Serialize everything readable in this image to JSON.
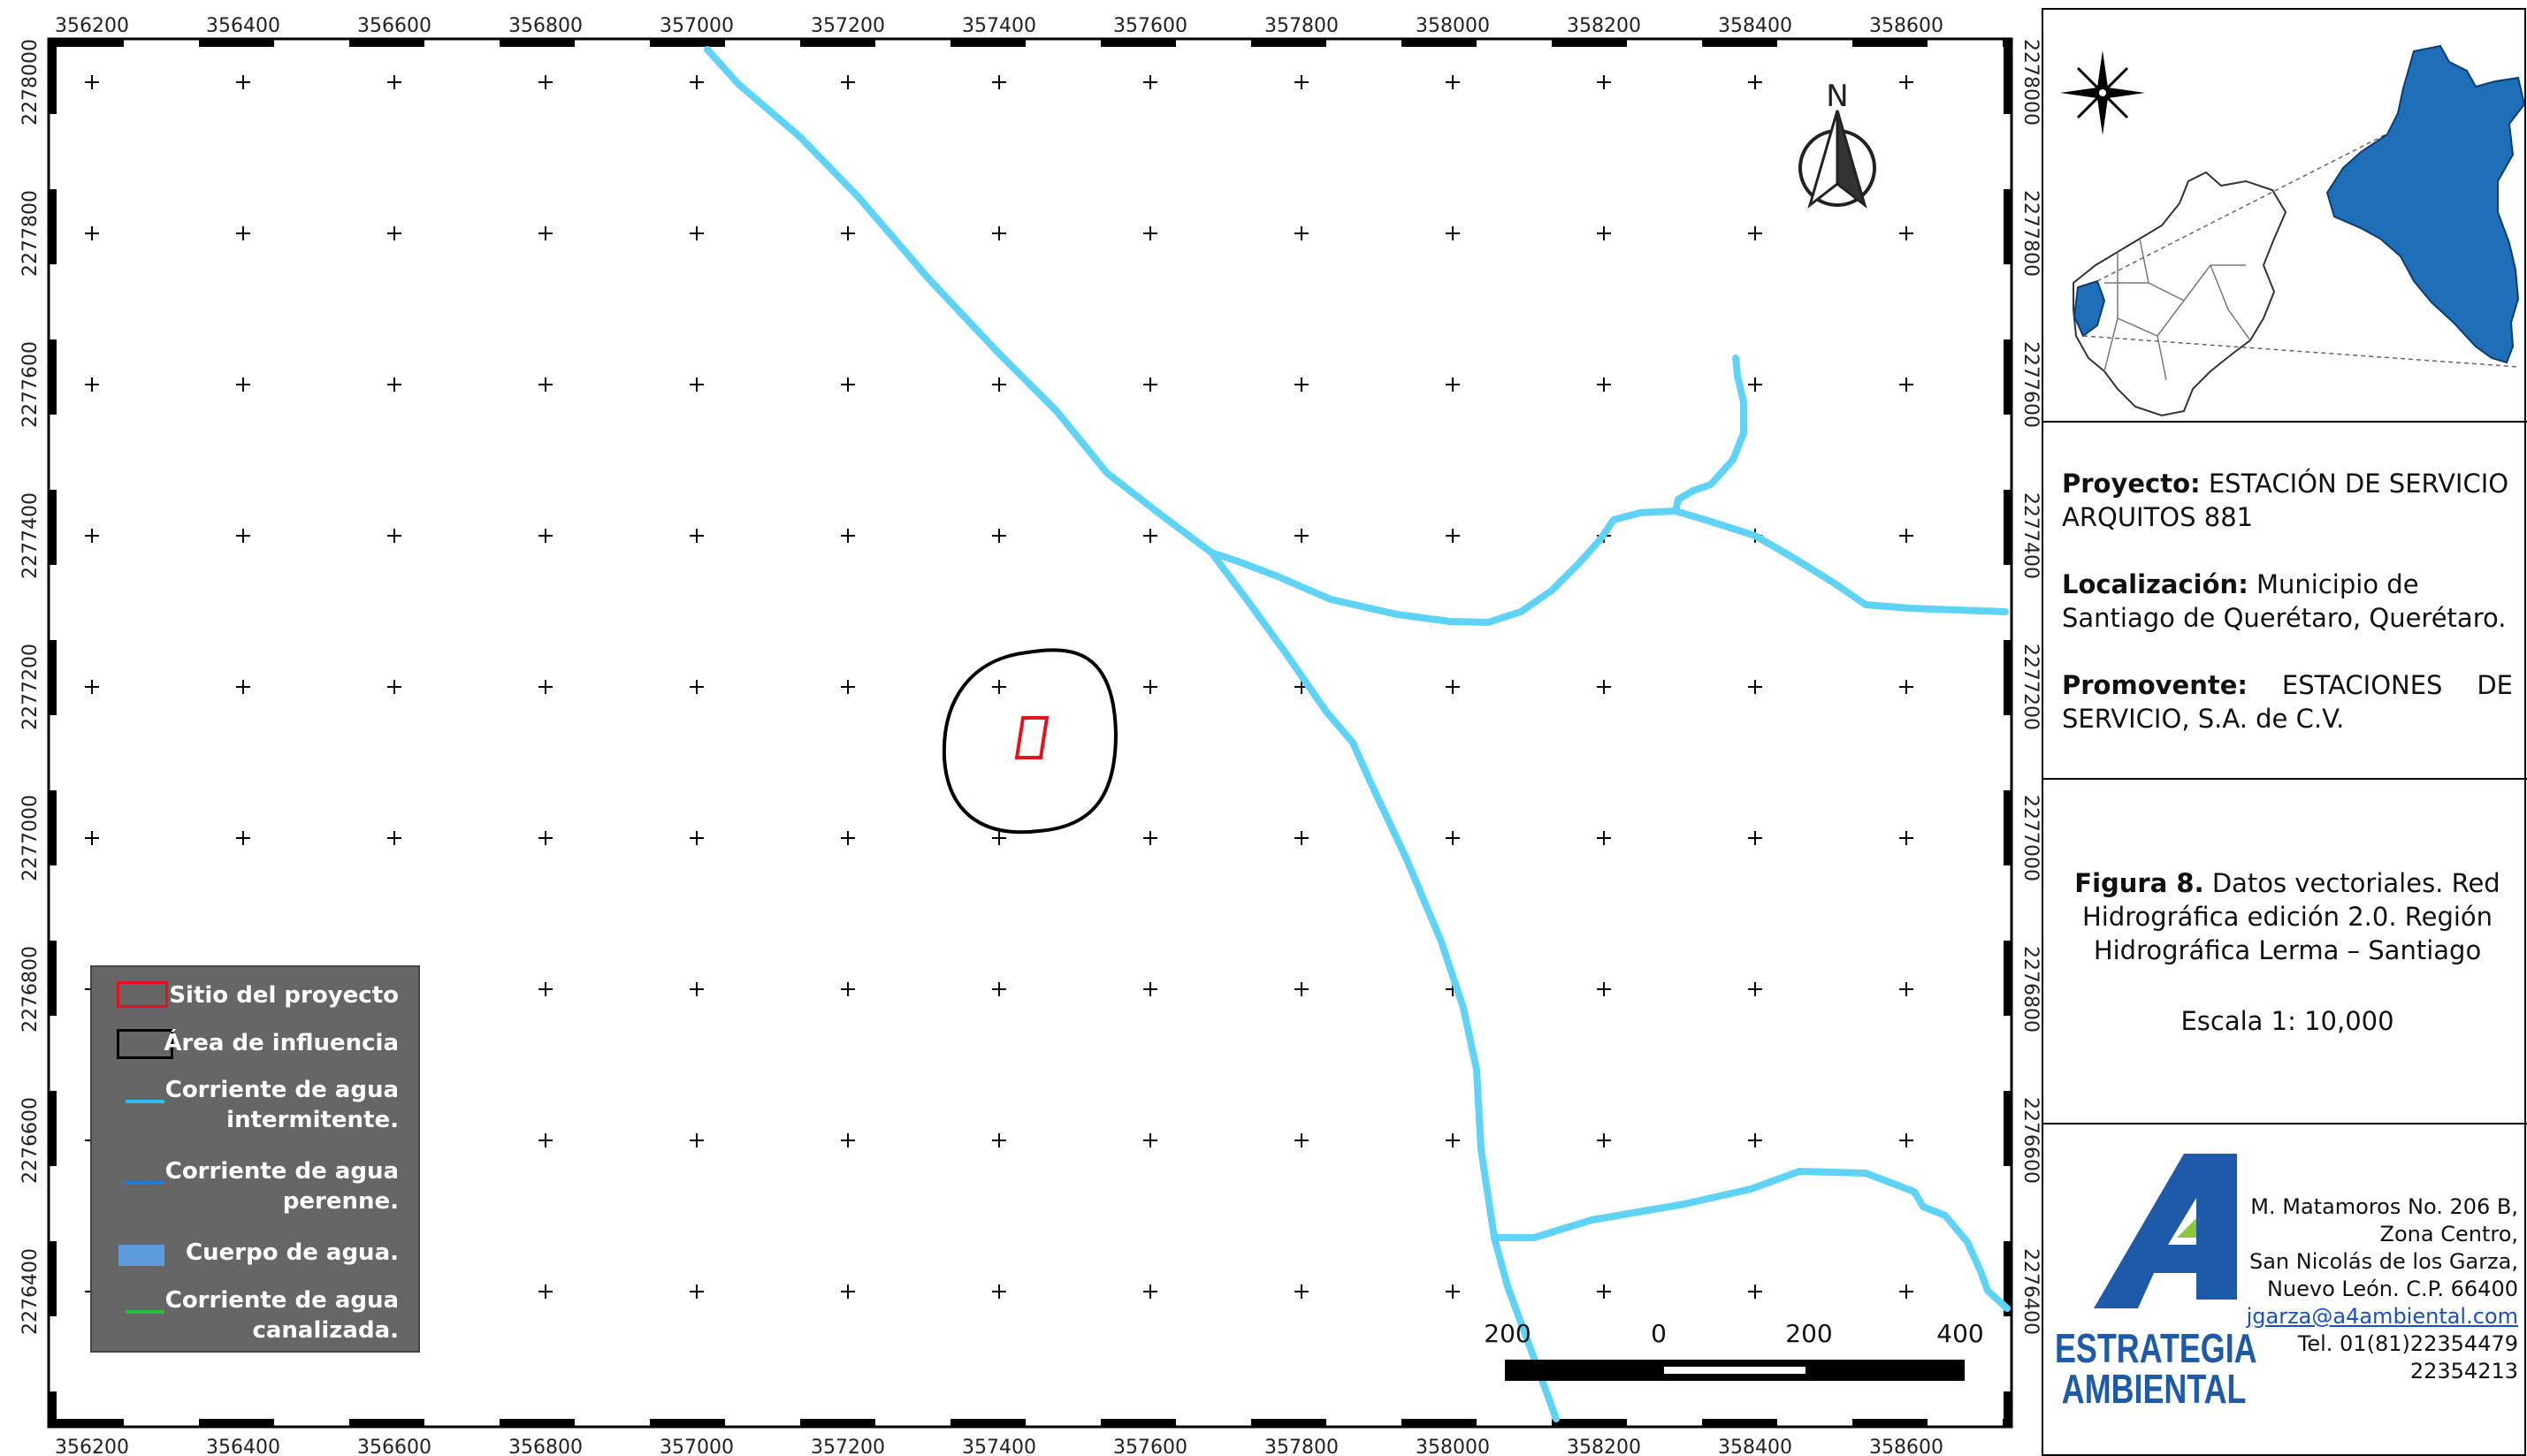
{
  "map": {
    "x_ticks": [
      "356200",
      "356400",
      "356600",
      "356800",
      "357000",
      "357200",
      "357400",
      "357600",
      "357800",
      "358000",
      "358200",
      "358400",
      "358600"
    ],
    "y_ticks": [
      "2278000",
      "2277800",
      "2277600",
      "2277400",
      "2277200",
      "2277000",
      "2276800",
      "2276600",
      "2276400"
    ],
    "north_label": "N",
    "scale_labels": [
      "200",
      "0",
      "200",
      "400"
    ],
    "colors": {
      "stream": "#5fd3f5",
      "site": "#e8101a",
      "influence": "#000000",
      "legend_bg": "#666666",
      "logo_blue": "#1e5aa8"
    }
  },
  "legend": {
    "items": [
      {
        "label_1": "Sitio del proyecto",
        "label_2": "",
        "symbol": "red-rectangle"
      },
      {
        "label_1": "Área de influencia",
        "label_2": "",
        "symbol": "black-rectangle"
      },
      {
        "label_1": "Corriente de agua",
        "label_2": "intermitente.",
        "symbol": "light-blue-line"
      },
      {
        "label_1": "Corriente de agua",
        "label_2": "perenne.",
        "symbol": "blue-line"
      },
      {
        "label_1": "Cuerpo de agua.",
        "label_2": "",
        "symbol": "blue-fill"
      },
      {
        "label_1": "Corriente de agua",
        "label_2": "canalizada.",
        "symbol": "green-line"
      }
    ]
  },
  "info": {
    "proyecto_label": "Proyecto:",
    "proyecto_value": "ESTACIÓN DE SERVICIO ARQUITOS 881",
    "localizacion_label": "Localización:",
    "localizacion_value": "Municipio de Santiago de Querétaro, Querétaro.",
    "promovente_label": "Promovente:",
    "promovente_value": "ESTACIONES DE SERVICIO, S.A. de C.V.",
    "figura_label": "Figura 8.",
    "figura_value": "Datos vectoriales. Red Hidrográfica edición 2.0. Región Hidrográfica Lerma – Santiago",
    "escala": "Escala 1: 10,000"
  },
  "company": {
    "logo_mark": "4",
    "name_1": "ESTRATEGIA",
    "name_2": "AMBIENTAL",
    "address": [
      "M. Matamoros No. 206 B,",
      "Zona Centro,",
      "San Nicolás de los Garza,",
      "Nuevo León. C.P. 66400"
    ],
    "email": "jgarza@a4ambiental.com",
    "phone_1": "Tel. 01(81)22354479",
    "phone_2": "22354213"
  }
}
